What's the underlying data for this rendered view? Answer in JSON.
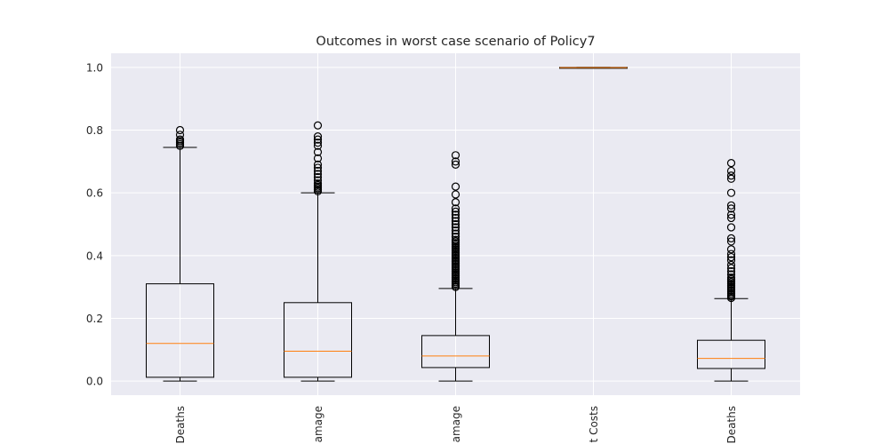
{
  "chart_data": {
    "type": "box",
    "title": "Outcomes in worst case scenario of Policy7",
    "xlabel": "",
    "ylabel": "",
    "ylim": [
      -0.045,
      1.045
    ],
    "yticks": [
      0.0,
      0.2,
      0.4,
      0.6,
      0.8,
      1.0
    ],
    "ytick_labels": [
      "0.0",
      "0.2",
      "0.4",
      "0.6",
      "0.8",
      "1.0"
    ],
    "grid": true,
    "categories": [
      "Deaths",
      "amage",
      "amage",
      "t Costs",
      "Deaths"
    ],
    "series": [
      {
        "whisker_low": 0.0,
        "q1": 0.012,
        "median": 0.12,
        "q3": 0.31,
        "whisker_high": 0.745,
        "outliers": [
          0.75,
          0.755,
          0.76,
          0.765,
          0.77,
          0.785,
          0.8
        ]
      },
      {
        "whisker_low": 0.0,
        "q1": 0.012,
        "median": 0.095,
        "q3": 0.25,
        "whisker_high": 0.6,
        "outliers": [
          0.605,
          0.61,
          0.615,
          0.62,
          0.625,
          0.63,
          0.64,
          0.65,
          0.66,
          0.67,
          0.68,
          0.69,
          0.71,
          0.73,
          0.75,
          0.76,
          0.77,
          0.78,
          0.815
        ]
      },
      {
        "whisker_low": 0.0,
        "q1": 0.043,
        "median": 0.08,
        "q3": 0.145,
        "whisker_high": 0.295,
        "outliers": [
          0.3,
          0.305,
          0.31,
          0.315,
          0.32,
          0.325,
          0.33,
          0.335,
          0.34,
          0.345,
          0.35,
          0.355,
          0.36,
          0.365,
          0.37,
          0.375,
          0.38,
          0.385,
          0.39,
          0.395,
          0.4,
          0.405,
          0.41,
          0.415,
          0.42,
          0.425,
          0.43,
          0.435,
          0.44,
          0.445,
          0.45,
          0.46,
          0.47,
          0.48,
          0.49,
          0.5,
          0.51,
          0.52,
          0.53,
          0.54,
          0.55,
          0.57,
          0.595,
          0.62,
          0.69,
          0.7,
          0.72
        ]
      },
      {
        "whisker_low": 0.998,
        "q1": 0.999,
        "median": 0.9995,
        "q3": 1.0,
        "whisker_high": 1.0,
        "outliers": []
      },
      {
        "whisker_low": 0.0,
        "q1": 0.04,
        "median": 0.072,
        "q3": 0.13,
        "whisker_high": 0.263,
        "outliers": [
          0.265,
          0.27,
          0.275,
          0.28,
          0.285,
          0.29,
          0.295,
          0.3,
          0.305,
          0.31,
          0.315,
          0.32,
          0.325,
          0.33,
          0.34,
          0.35,
          0.36,
          0.37,
          0.385,
          0.395,
          0.405,
          0.42,
          0.445,
          0.455,
          0.49,
          0.52,
          0.53,
          0.55,
          0.56,
          0.6,
          0.645,
          0.655,
          0.67,
          0.695
        ]
      }
    ]
  },
  "colors": {
    "plot_background": "#EAEAF2",
    "grid": "#FFFFFF",
    "box": "#000000",
    "median": "#FF7F0E",
    "text": "#262626"
  }
}
